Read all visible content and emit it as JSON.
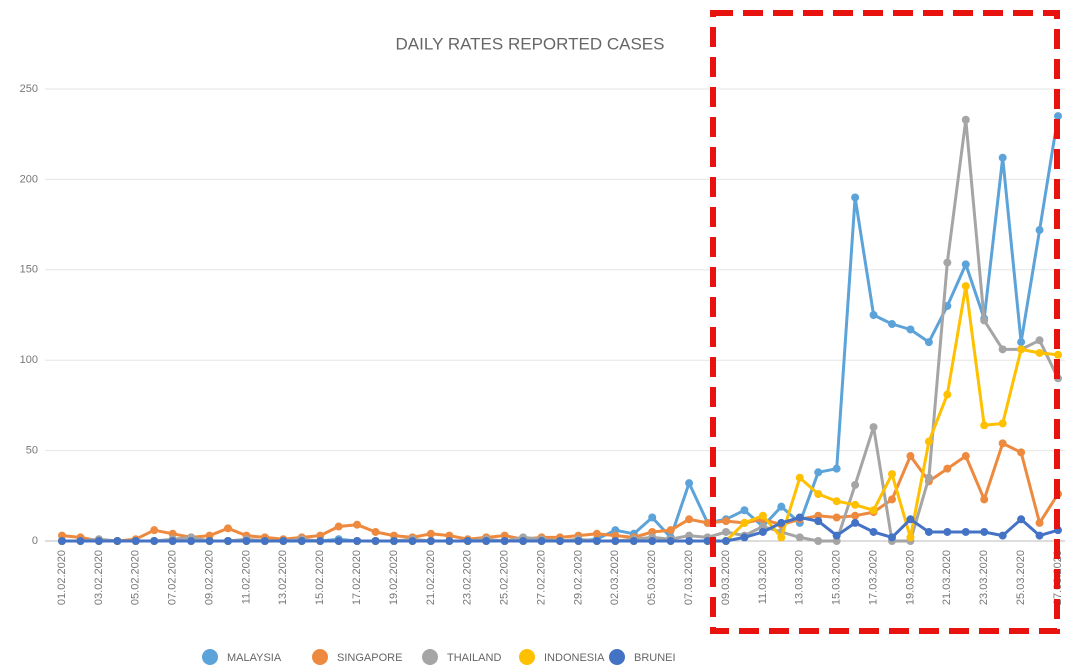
{
  "chart_data": {
    "type": "line",
    "title": "DAILY RATES REPORTED CASES",
    "categories": [
      "01.02.2020",
      null,
      "03.02.2020",
      null,
      "05.02.2020",
      null,
      "07.02.2020",
      null,
      "09.02.2020",
      null,
      "11.02.2020",
      null,
      "13.02.2020",
      null,
      "15.02.2020",
      null,
      "17.02.2020",
      null,
      "19.02.2020",
      null,
      "21.02.2020",
      null,
      "23.02.2020",
      null,
      "25.02.2020",
      null,
      "27.02.2020",
      null,
      "29.02.2020",
      null,
      "02.03.2020",
      null,
      "05.03.2020",
      null,
      "07.03.2020",
      null,
      "09.03.2020",
      null,
      "11.03.2020",
      null,
      "13.03.2020",
      null,
      "15.03.2020",
      null,
      "17.03.2020",
      null,
      "19.03.2020",
      null,
      "21.03.2020",
      null,
      "23.03.2020",
      null,
      "25.03.2020",
      null,
      "27.03.2020"
    ],
    "ylim": [
      0,
      250
    ],
    "yticks": [
      0,
      50,
      100,
      150,
      200,
      250
    ],
    "grid": true,
    "legend": "bottom",
    "series": [
      {
        "name": "MALAYSIA",
        "color": "#5ba3d9",
        "values": [
          0,
          0,
          0,
          0,
          0,
          0,
          0,
          0,
          0,
          0,
          0,
          0,
          0,
          0,
          0,
          1,
          0,
          0,
          0,
          0,
          0,
          0,
          0,
          0,
          0,
          0,
          0,
          0,
          0,
          1,
          6,
          4,
          13,
          2,
          32,
          10,
          12,
          17,
          8,
          19,
          10,
          38,
          40,
          190,
          125,
          120,
          117,
          110,
          130,
          153,
          123,
          212,
          110,
          172,
          235
        ]
      },
      {
        "name": "SINGAPORE",
        "color": "#ed8a3f",
        "values": [
          3,
          2,
          0,
          0,
          1,
          6,
          4,
          2,
          3,
          7,
          3,
          2,
          1,
          2,
          3,
          8,
          9,
          5,
          3,
          2,
          4,
          3,
          1,
          2,
          3,
          1,
          2,
          2,
          3,
          4,
          3,
          2,
          5,
          6,
          12,
          10,
          11,
          10,
          12,
          9,
          12,
          14,
          13,
          14,
          16,
          23,
          47,
          33,
          40,
          47,
          23,
          54,
          49,
          10,
          26
        ]
      },
      {
        "name": "THAILAND",
        "color": "#a5a5a5",
        "values": [
          0,
          0,
          1,
          0,
          0,
          0,
          1,
          2,
          0,
          0,
          1,
          0,
          0,
          1,
          0,
          0,
          0,
          0,
          0,
          1,
          0,
          0,
          0,
          1,
          0,
          2,
          1,
          0,
          1,
          0,
          0,
          1,
          2,
          1,
          3,
          2,
          5,
          3,
          8,
          5,
          2,
          0,
          0,
          31,
          63,
          0,
          0,
          35,
          154,
          233,
          122,
          106,
          106,
          111,
          90
        ]
      },
      {
        "name": "INDONESIA",
        "color": "#ffc000",
        "values": [
          0,
          0,
          0,
          0,
          0,
          0,
          0,
          0,
          0,
          0,
          0,
          0,
          0,
          0,
          0,
          0,
          0,
          0,
          0,
          0,
          0,
          0,
          0,
          0,
          0,
          0,
          0,
          0,
          0,
          0,
          0,
          0,
          0,
          0,
          0,
          0,
          0,
          10,
          14,
          2,
          35,
          26,
          22,
          20,
          17,
          37,
          2,
          55,
          81,
          141,
          64,
          65,
          106,
          104,
          103
        ]
      },
      {
        "name": "BRUNEI",
        "color": "#4472c4",
        "values": [
          0,
          0,
          0,
          0,
          0,
          0,
          0,
          0,
          0,
          0,
          0,
          0,
          0,
          0,
          0,
          0,
          0,
          0,
          0,
          0,
          0,
          0,
          0,
          0,
          0,
          0,
          0,
          0,
          0,
          0,
          0,
          0,
          0,
          0,
          0,
          0,
          0,
          2,
          5,
          10,
          13,
          11,
          3,
          10,
          5,
          2,
          12,
          5,
          5,
          5,
          5,
          3,
          12,
          3,
          6
        ]
      }
    ]
  }
}
